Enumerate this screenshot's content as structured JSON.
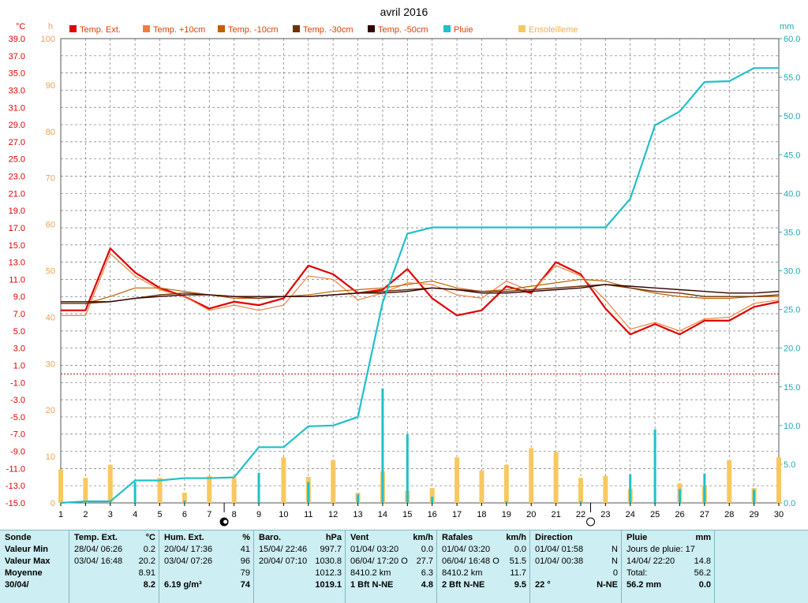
{
  "chart_data": {
    "type": "line",
    "title": "avril 2016",
    "units": {
      "left_temp": "°C",
      "left_sun": "h",
      "right_rain": "mm"
    },
    "x_ticks": [
      "1",
      "2",
      "3",
      "4",
      "5",
      "6",
      "7",
      "8",
      "9",
      "10",
      "11",
      "12",
      "13",
      "14",
      "15",
      "16",
      "17",
      "18",
      "19",
      "20",
      "21",
      "22",
      "23",
      "24",
      "25",
      "26",
      "27",
      "28",
      "29",
      "30"
    ],
    "temp_axis": {
      "min": -15,
      "max": 39,
      "ticks": [
        "39.0",
        "37.0",
        "35.0",
        "33.0",
        "31.0",
        "29.0",
        "27.0",
        "25.0",
        "23.0",
        "21.0",
        "19.0",
        "17.0",
        "15.0",
        "13.0",
        "11.0",
        "9.0",
        "7.0",
        "5.0",
        "3.0",
        "1.0",
        "-1.0",
        "-3.0",
        "-5.0",
        "-7.0",
        "-9.0",
        "-11.0",
        "-13.0",
        "-15.0"
      ]
    },
    "sun_axis": {
      "min": 0,
      "max": 100,
      "ticks": [
        "100",
        "90",
        "80",
        "70",
        "60",
        "50",
        "40",
        "30",
        "20",
        "10",
        "0"
      ]
    },
    "rain_axis": {
      "min": 0,
      "max": 60,
      "ticks": [
        "60.0",
        "55.0",
        "50.0",
        "45.0",
        "40.0",
        "35.0",
        "30.0",
        "25.0",
        "20.0",
        "15.0",
        "10.0",
        "5.0",
        "0.0"
      ]
    },
    "legend": [
      {
        "name": "Temp. Ext.",
        "color": "#e00000"
      },
      {
        "name": "Temp. +10cm",
        "color": "#f08040"
      },
      {
        "name": "Temp. -10cm",
        "color": "#c06000"
      },
      {
        "name": "Temp. -30cm",
        "color": "#703000"
      },
      {
        "name": "Temp. -50cm",
        "color": "#300000"
      },
      {
        "name": "Pluie",
        "color": "#20c0c8"
      },
      {
        "name": "Ensoleilleme",
        "color": "#f8c860"
      }
    ],
    "series": [
      {
        "name": "Temp. Ext.",
        "color": "#e00000",
        "width": 2.2,
        "x": [
          1,
          2,
          3,
          4,
          5,
          6,
          7,
          8,
          9,
          10,
          11,
          12,
          13,
          14,
          15,
          16,
          17,
          18,
          19,
          20,
          21,
          22,
          23,
          24,
          25,
          26,
          27,
          28,
          29,
          30
        ],
        "y": [
          7.4,
          7.4,
          14.6,
          11.8,
          10.0,
          9.0,
          7.6,
          8.4,
          8.0,
          8.8,
          12.6,
          11.6,
          9.4,
          9.8,
          12.2,
          8.8,
          6.8,
          7.4,
          10.2,
          9.4,
          13.0,
          11.6,
          7.6,
          4.6,
          5.8,
          4.6,
          6.2,
          6.2,
          7.8,
          8.4
        ]
      },
      {
        "name": "Temp. +10cm",
        "color": "#f08040",
        "width": 1.2,
        "x": [
          1,
          2,
          3,
          4,
          5,
          6,
          7,
          8,
          9,
          10,
          11,
          12,
          13,
          14,
          15,
          16,
          17,
          18,
          19,
          20,
          21,
          22,
          23,
          24,
          25,
          26,
          27,
          28,
          29,
          30
        ],
        "y": [
          6.8,
          6.8,
          14.0,
          11.4,
          9.8,
          9.0,
          7.4,
          8.0,
          7.4,
          8.0,
          11.4,
          11.0,
          8.6,
          9.4,
          10.6,
          10.4,
          9.2,
          8.8,
          10.8,
          9.6,
          12.6,
          11.4,
          8.6,
          5.2,
          6.0,
          5.0,
          6.4,
          6.6,
          8.2,
          8.6
        ]
      },
      {
        "name": "Temp. -10cm",
        "color": "#c06000",
        "width": 1.2,
        "x": [
          1,
          2,
          3,
          4,
          5,
          6,
          7,
          8,
          9,
          10,
          11,
          12,
          13,
          14,
          15,
          16,
          17,
          18,
          19,
          20,
          21,
          22,
          23,
          24,
          25,
          26,
          27,
          28,
          29,
          30
        ],
        "y": [
          8.2,
          8.2,
          9.0,
          10.0,
          10.0,
          9.6,
          9.2,
          8.8,
          8.8,
          9.0,
          9.2,
          9.6,
          9.8,
          10.0,
          10.4,
          10.8,
          10.0,
          9.6,
          9.8,
          10.2,
          10.6,
          11.0,
          10.8,
          10.0,
          9.4,
          9.0,
          8.8,
          8.8,
          9.0,
          9.0
        ]
      },
      {
        "name": "Temp. -30cm",
        "color": "#703000",
        "width": 1.4,
        "x": [
          1,
          2,
          3,
          4,
          5,
          6,
          7,
          8,
          9,
          10,
          11,
          12,
          13,
          14,
          15,
          16,
          17,
          18,
          19,
          20,
          21,
          22,
          23,
          24,
          25,
          26,
          27,
          28,
          29,
          30
        ],
        "y": [
          8.2,
          8.2,
          8.4,
          8.8,
          9.2,
          9.4,
          9.2,
          9.0,
          8.8,
          9.0,
          9.0,
          9.2,
          9.4,
          9.6,
          9.8,
          10.0,
          9.8,
          9.6,
          9.6,
          9.8,
          10.0,
          10.2,
          10.4,
          10.0,
          9.6,
          9.4,
          9.0,
          9.0,
          9.0,
          9.2
        ]
      },
      {
        "name": "Temp. -50cm",
        "color": "#300000",
        "width": 1.4,
        "x": [
          1,
          2,
          3,
          4,
          5,
          6,
          7,
          8,
          9,
          10,
          11,
          12,
          13,
          14,
          15,
          16,
          17,
          18,
          19,
          20,
          21,
          22,
          23,
          24,
          25,
          26,
          27,
          28,
          29,
          30
        ],
        "y": [
          8.4,
          8.4,
          8.4,
          8.8,
          9.0,
          9.2,
          9.2,
          9.0,
          9.0,
          9.0,
          9.0,
          9.2,
          9.4,
          9.4,
          9.6,
          10.0,
          9.8,
          9.4,
          9.4,
          9.6,
          9.8,
          10.0,
          10.4,
          10.2,
          10.0,
          9.8,
          9.6,
          9.4,
          9.4,
          9.6
        ]
      }
    ],
    "rain_cumulative": {
      "x": [
        1,
        2,
        3,
        4,
        5,
        6,
        7,
        8,
        9,
        10,
        11,
        12,
        13,
        14,
        15,
        16,
        17,
        18,
        19,
        20,
        21,
        22,
        23,
        24,
        25,
        26,
        27,
        28,
        29,
        30
      ],
      "y": [
        0,
        0.2,
        0.2,
        2.9,
        2.9,
        3.2,
        3.2,
        3.3,
        7.2,
        7.2,
        9.9,
        10.0,
        11.1,
        25.9,
        34.8,
        35.6,
        35.6,
        35.6,
        35.6,
        35.6,
        35.6,
        35.6,
        35.6,
        39.3,
        48.8,
        50.6,
        54.4,
        54.5,
        56.2,
        56.2
      ],
      "color": "#20c0c8"
    },
    "rain_daily": {
      "x": [
        2,
        3,
        4,
        6,
        9,
        11,
        13,
        14,
        15,
        16,
        19,
        22,
        24,
        25,
        26,
        27,
        29
      ],
      "y": [
        0.2,
        0.2,
        2.7,
        0.3,
        3.9,
        2.7,
        1.1,
        14.8,
        8.9,
        0.8,
        0.2,
        0.2,
        3.7,
        9.5,
        1.8,
        3.8,
        1.7
      ],
      "color": "#20c0c8"
    },
    "sunshine": {
      "x": [
        1,
        2,
        3,
        4,
        5,
        6,
        7,
        8,
        9,
        10,
        11,
        12,
        13,
        14,
        15,
        16,
        17,
        18,
        19,
        20,
        21,
        22,
        23,
        24,
        25,
        26,
        27,
        28,
        29,
        30
      ],
      "y": [
        7.2,
        5.4,
        8.2,
        0,
        5.4,
        2.2,
        5.8,
        5.4,
        0,
        9.8,
        5.6,
        9.2,
        2.2,
        6.8,
        2.6,
        3.2,
        9.8,
        7.0,
        8.2,
        11.8,
        11.0,
        5.4,
        5.8,
        3.0,
        0,
        4.2,
        3.6,
        9.2,
        3.2,
        9.8
      ],
      "color": "#f8c860"
    },
    "freeze_line": 0,
    "moon_markers": [
      {
        "x": 7.6,
        "type": "full"
      },
      {
        "x": 22.4,
        "type": "new"
      }
    ]
  },
  "panel": {
    "sonde": {
      "header": "Sonde",
      "rows": [
        "Valeur Min",
        "Valeur Max",
        "Moyenne",
        "30/04/"
      ]
    },
    "temp": {
      "header": "Temp. Ext.",
      "unit": "°C",
      "rows": [
        [
          "28/04/  06:26",
          "0.2"
        ],
        [
          "03/04/  16:48",
          "20.2"
        ],
        [
          "",
          "8.91"
        ],
        [
          "",
          "8.2"
        ]
      ]
    },
    "hum": {
      "header": "Hum. Ext.",
      "unit": "%",
      "rows": [
        [
          "20/04/  17:36",
          "41"
        ],
        [
          "03/04/  07:26",
          "96"
        ],
        [
          "",
          "79"
        ],
        [
          "6.19 g/m³",
          "74"
        ]
      ]
    },
    "baro": {
      "header": "Baro.",
      "unit": "hPa",
      "rows": [
        [
          "15/04/  22:46",
          "997.7"
        ],
        [
          "20/04/  07:10",
          "1030.8"
        ],
        [
          "",
          "1012.3"
        ],
        [
          "",
          "1019.1"
        ]
      ]
    },
    "vent": {
      "header": "Vent",
      "unit": "km/h",
      "rows": [
        [
          "01/04/  03:20",
          "0.0"
        ],
        [
          "06/04/  17:20  O",
          "27.7"
        ],
        [
          "8410.2 km",
          "6.3"
        ],
        [
          "1 Bft N-NE",
          "4.8"
        ]
      ]
    },
    "rafales": {
      "header": "Rafales",
      "unit": "km/h",
      "rows": [
        [
          "01/04/  03:20",
          "0.0"
        ],
        [
          "06/04/  16:48  O",
          "51.5"
        ],
        [
          "8410.2 km",
          "11.7"
        ],
        [
          "2 Bft N-NE",
          "9.5"
        ]
      ]
    },
    "direction": {
      "header": "Direction",
      "unit": "",
      "rows": [
        [
          "01/04/  01:58",
          "N"
        ],
        [
          "01/04/  00:38",
          "N"
        ],
        [
          "",
          "0"
        ],
        [
          "22 °",
          "N-NE"
        ]
      ]
    },
    "pluie": {
      "header": "Pluie",
      "unit": "mm",
      "rows": [
        [
          "Jours de pluie: 17",
          ""
        ],
        [
          "14/04/  22:20",
          "14.8"
        ],
        [
          "Total:",
          "56.2"
        ],
        [
          "56.2 mm",
          "0.0"
        ]
      ]
    }
  }
}
